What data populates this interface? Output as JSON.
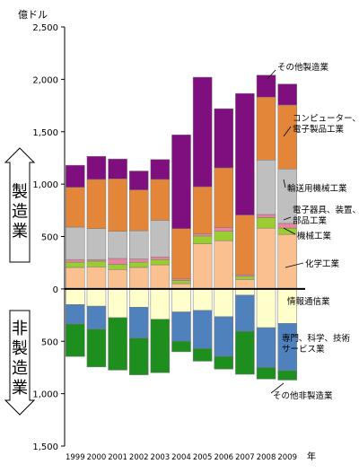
{
  "chart_data": {
    "type": "bar",
    "stacked": true,
    "y_unit": "億ドル",
    "x_unit": "年",
    "ylim": [
      -1500,
      2500
    ],
    "y_ticks": [
      -1500,
      -1000,
      -500,
      0,
      500,
      1000,
      1500,
      2000,
      2500
    ],
    "y_tick_labels": [
      "1,500",
      "1,000",
      "500",
      "0",
      "500",
      "1,000",
      "1,500",
      "2,000",
      "2,500"
    ],
    "categories": [
      "1999",
      "2000",
      "2001",
      "2002",
      "2003",
      "2004",
      "2005",
      "2006",
      "2007",
      "2008",
      "2009"
    ],
    "grid": false,
    "series": [
      {
        "name": "化学工業",
        "group": "製造業",
        "color": "#fac090",
        "values": [
          205,
          210,
          185,
          205,
          230,
          50,
          430,
          460,
          90,
          580,
          520
        ]
      },
      {
        "name": "機械工業",
        "group": "製造業",
        "color": "#9acd32",
        "values": [
          50,
          55,
          50,
          50,
          50,
          30,
          75,
          90,
          30,
          100,
          60
        ]
      },
      {
        "name": "電子器具、装置、部品工業",
        "group": "製造業",
        "color": "#e8849f",
        "values": [
          25,
          15,
          55,
          30,
          25,
          15,
          20,
          35,
          15,
          30,
          45
        ]
      },
      {
        "name": "輸送用機械工業",
        "group": "製造業",
        "color": "#bfbfbf",
        "values": [
          310,
          295,
          260,
          270,
          350,
          0,
          0,
          0,
          0,
          520,
          520
        ]
      },
      {
        "name": "コンピューター、電子製品工業",
        "group": "製造業",
        "color": "#e3863a",
        "values": [
          380,
          470,
          500,
          390,
          390,
          480,
          450,
          570,
          570,
          600,
          610
        ]
      },
      {
        "name": "その他製造業",
        "group": "製造業",
        "color": "#7f0f7e",
        "values": [
          210,
          220,
          190,
          180,
          190,
          895,
          1045,
          565,
          1160,
          210,
          200
        ]
      },
      {
        "name": "情報通信業",
        "group": "非製造業",
        "color": "#ffffcc",
        "values": [
          -150,
          -165,
          -275,
          -175,
          -290,
          -220,
          -205,
          -265,
          -60,
          -370,
          -330
        ]
      },
      {
        "name": "専門、科学、技術サービス業",
        "group": "非製造業",
        "color": "#4f81bd",
        "values": [
          -185,
          -220,
          0,
          -295,
          0,
          -280,
          -365,
          -380,
          -345,
          -380,
          -450
        ]
      },
      {
        "name": "その他非製造業",
        "group": "非製造業",
        "color": "#1e8f1e",
        "values": [
          -310,
          -360,
          -500,
          -350,
          -510,
          -100,
          -120,
          -120,
          -410,
          -110,
          -90
        ]
      }
    ],
    "group_labels": {
      "upper": "製造業",
      "lower": "非製造業"
    }
  }
}
